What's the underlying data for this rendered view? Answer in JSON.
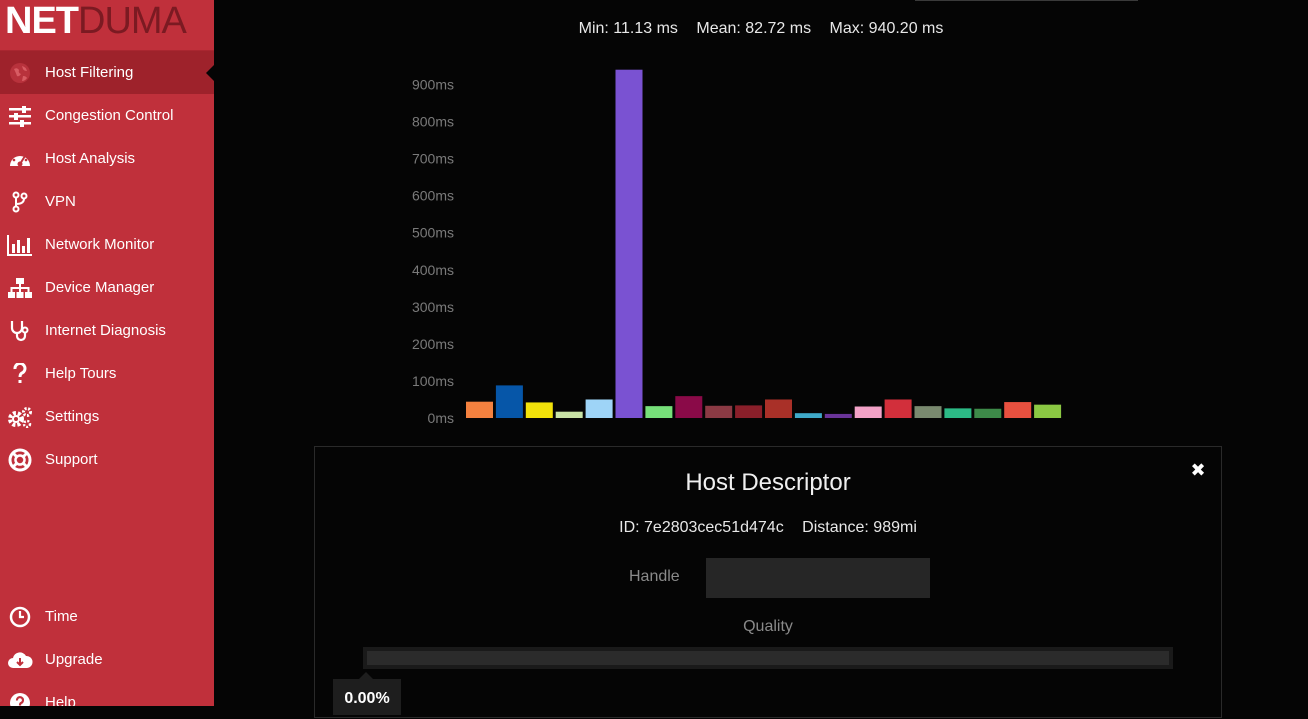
{
  "brand": {
    "part1": "NET",
    "part2": "DUMA"
  },
  "sidebar": {
    "items": [
      {
        "label": "Host Filtering",
        "icon": "globe-icon",
        "active": true
      },
      {
        "label": "Congestion Control",
        "icon": "sliders-icon"
      },
      {
        "label": "Host Analysis",
        "icon": "speedometer-icon"
      },
      {
        "label": "VPN",
        "icon": "vpn-branch-icon"
      },
      {
        "label": "Network Monitor",
        "icon": "bar-chart-icon"
      },
      {
        "label": "Device Manager",
        "icon": "sitemap-icon"
      },
      {
        "label": "Internet Diagnosis",
        "icon": "stethoscope-icon"
      },
      {
        "label": "Help Tours",
        "icon": "question-icon"
      },
      {
        "label": "Settings",
        "icon": "gears-icon"
      },
      {
        "label": "Support",
        "icon": "lifebuoy-icon"
      }
    ],
    "bottom_items": [
      {
        "label": "Time",
        "icon": "clock-icon"
      },
      {
        "label": "Upgrade",
        "icon": "cloud-download-icon"
      },
      {
        "label": "Help",
        "icon": "question-circle-icon"
      }
    ]
  },
  "stats": {
    "min": "Min: 11.13 ms",
    "mean": "Mean: 82.72 ms",
    "max": "Max: 940.20 ms"
  },
  "chart_data": {
    "type": "bar",
    "ylim": [
      0,
      950
    ],
    "yticks": [
      0,
      100,
      200,
      300,
      400,
      500,
      600,
      700,
      800,
      900
    ],
    "ytick_labels": [
      "0ms",
      "100ms",
      "200ms",
      "300ms",
      "400ms",
      "500ms",
      "600ms",
      "700ms",
      "800ms",
      "900ms"
    ],
    "values": [
      44,
      88,
      42,
      17,
      50,
      940,
      32,
      59,
      33,
      34,
      50,
      13,
      11,
      31,
      50,
      32,
      26,
      25,
      43,
      36
    ],
    "colors": [
      "#f4813f",
      "#0656a8",
      "#f2e20a",
      "#c9e3a6",
      "#9ed4f7",
      "#7a52d2",
      "#77e07a",
      "#8a0a48",
      "#8b3a44",
      "#8a1f2a",
      "#a93028",
      "#3fa9c9",
      "#6a3499",
      "#f2a2c7",
      "#d22f3b",
      "#7a8a6f",
      "#2cba86",
      "#3d8a49",
      "#e8503f",
      "#8bc843"
    ]
  },
  "panel": {
    "title": "Host Descriptor",
    "close_glyph": "✖",
    "id": "ID: 7e2803cec51d474c",
    "distance": "Distance: 989mi",
    "handle_label": "Handle",
    "handle_value": "",
    "quality_label": "Quality",
    "quality_value": "0.00%",
    "quality_fraction": 0
  }
}
